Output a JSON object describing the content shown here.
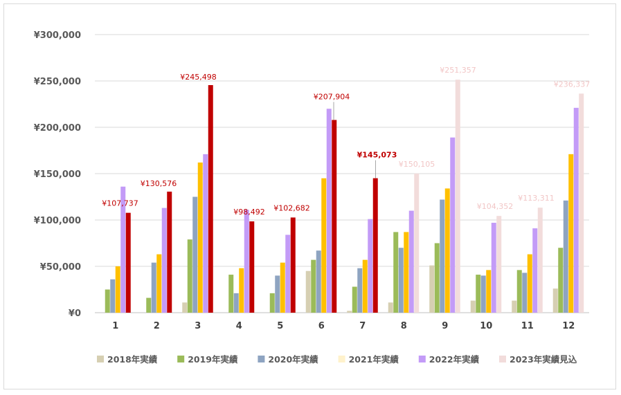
{
  "chart_data": {
    "type": "bar",
    "categories": [
      "1",
      "2",
      "3",
      "4",
      "5",
      "6",
      "7",
      "8",
      "9",
      "10",
      "11",
      "12"
    ],
    "ylim": [
      0,
      300000
    ],
    "yticks": [
      "¥0",
      "¥50,000",
      "¥100,000",
      "¥150,000",
      "¥200,000",
      "¥250,000",
      "¥300,000"
    ],
    "grid": true,
    "legend_position": "bottom",
    "series": [
      {
        "name": "2018年実績",
        "color": "#d6cfb2",
        "values": [
          0,
          0,
          11000,
          0,
          0,
          45000,
          2000,
          11000,
          51000,
          13000,
          13000,
          26000
        ]
      },
      {
        "name": "2019年実績",
        "color": "#9bbb59",
        "values": [
          25000,
          16000,
          79000,
          41000,
          21000,
          57000,
          28000,
          87000,
          75000,
          41000,
          46000,
          70000
        ]
      },
      {
        "name": "2020年実績",
        "color": "#8ea4c1",
        "values": [
          36000,
          54000,
          125000,
          21000,
          40000,
          67000,
          48000,
          70000,
          122000,
          40000,
          43000,
          121000
        ]
      },
      {
        "name": "2021年実績",
        "color": "#ffc000",
        "legend_color": "#fff2cc",
        "values": [
          50000,
          63000,
          162000,
          48000,
          54000,
          145000,
          57000,
          87000,
          134000,
          46000,
          63000,
          171000
        ]
      },
      {
        "name": "2022年実績",
        "color": "#c39bf7",
        "values": [
          136000,
          113000,
          171000,
          111000,
          84000,
          220000,
          101000,
          110000,
          189000,
          97000,
          91000,
          221000
        ]
      },
      {
        "name": "2023年実績見込",
        "color": "#c00000",
        "forecast_color": "#f2dcdb",
        "forecast_from_index": 7,
        "values": [
          107737,
          130576,
          245498,
          98492,
          102682,
          207904,
          145073,
          150105,
          251357,
          104352,
          113311,
          236337
        ]
      }
    ],
    "data_labels": [
      "¥107,737",
      "¥130,576",
      "¥245,498",
      "¥98,492",
      "¥102,682",
      "¥207,904",
      "¥145,073",
      "¥150,105",
      "¥251,357",
      "¥104,352",
      "¥113,311",
      "¥236,337"
    ],
    "label_color_actual": "#c00000",
    "label_color_forecast": "#f2c6c6"
  }
}
